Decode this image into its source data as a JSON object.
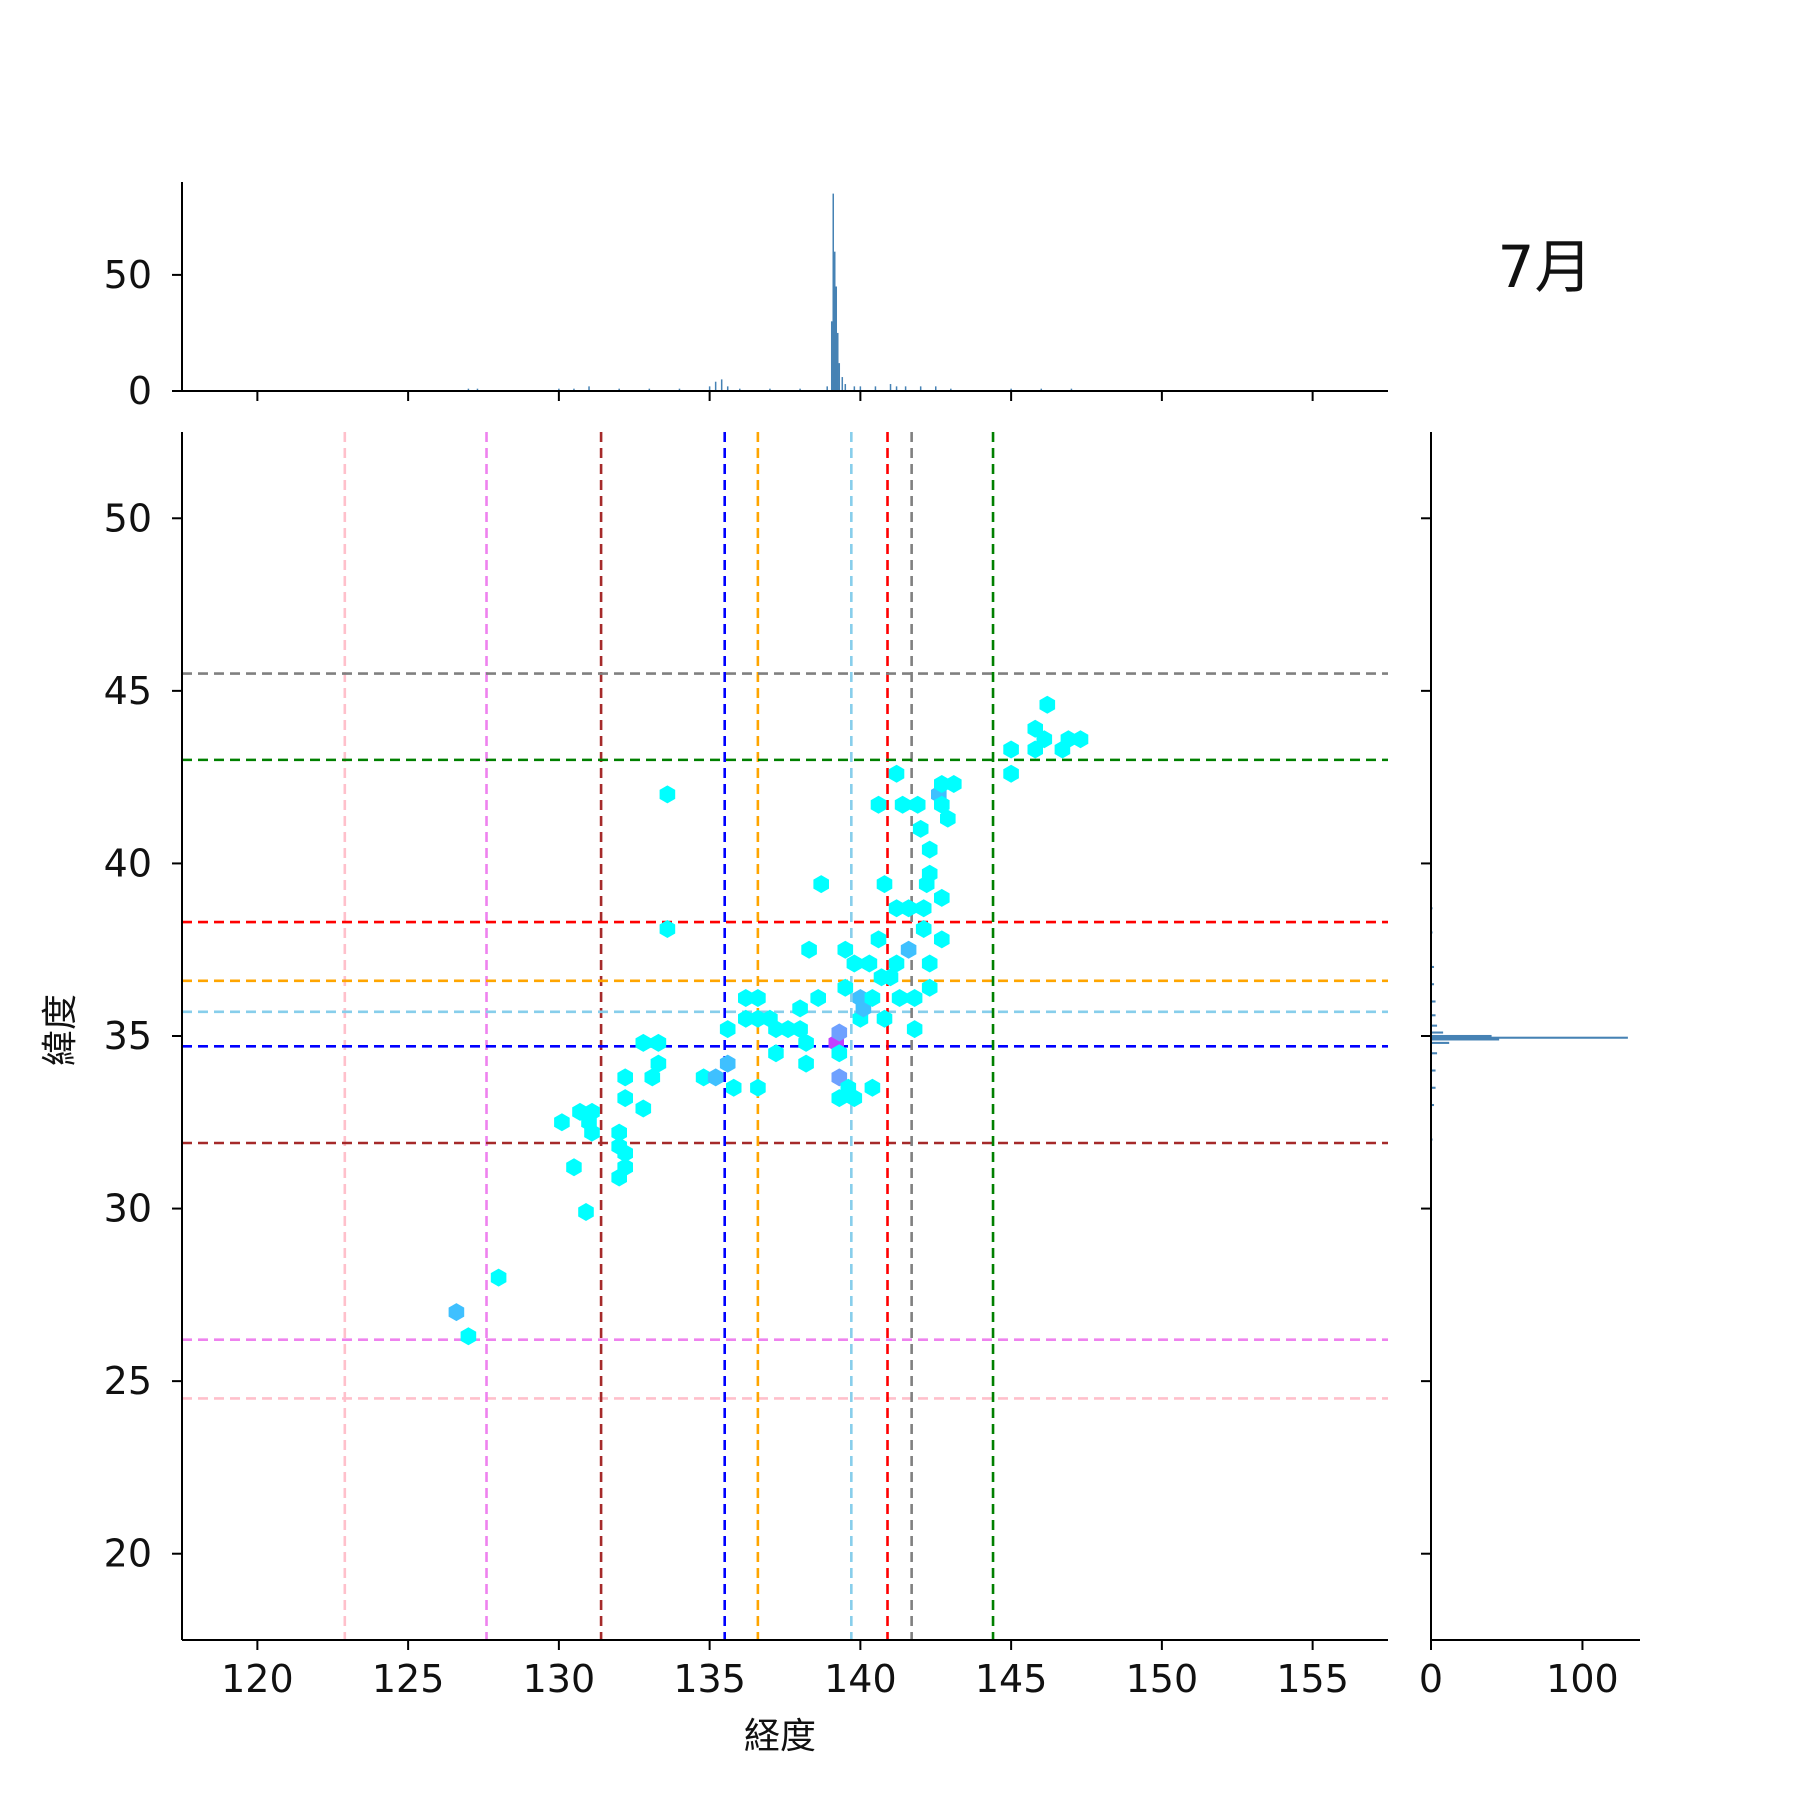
{
  "title": "7月",
  "chart_data": {
    "type": "hexbin",
    "xlabel": "経度",
    "ylabel": "緯度",
    "xlim": [
      117.5,
      157.5
    ],
    "ylim": [
      17.5,
      52.5
    ],
    "x_ticks": [
      120,
      125,
      130,
      135,
      140,
      145,
      150,
      155
    ],
    "y_ticks": [
      20,
      25,
      30,
      35,
      40,
      45,
      50
    ],
    "grid": false,
    "top_marginal": {
      "type": "histogram",
      "ylim": [
        0,
        90
      ],
      "y_ticks": [
        0,
        50
      ],
      "bins": [
        [
          127.0,
          1
        ],
        [
          127.3,
          1
        ],
        [
          130.0,
          1
        ],
        [
          130.5,
          1
        ],
        [
          131.0,
          2
        ],
        [
          132.0,
          1
        ],
        [
          133.0,
          1
        ],
        [
          134.0,
          1
        ],
        [
          135.0,
          2
        ],
        [
          135.2,
          4
        ],
        [
          135.4,
          5
        ],
        [
          135.6,
          2
        ],
        [
          136.0,
          1
        ],
        [
          137.0,
          1
        ],
        [
          138.0,
          1
        ],
        [
          138.9,
          2
        ],
        [
          139.05,
          30
        ],
        [
          139.1,
          85
        ],
        [
          139.15,
          60
        ],
        [
          139.2,
          45
        ],
        [
          139.25,
          25
        ],
        [
          139.3,
          12
        ],
        [
          139.4,
          6
        ],
        [
          139.5,
          3
        ],
        [
          139.8,
          2
        ],
        [
          140.0,
          2
        ],
        [
          140.5,
          2
        ],
        [
          141.0,
          3
        ],
        [
          141.2,
          2
        ],
        [
          141.5,
          2
        ],
        [
          142.0,
          2
        ],
        [
          142.5,
          2
        ],
        [
          143.0,
          1
        ],
        [
          145.0,
          1
        ],
        [
          146.0,
          1
        ],
        [
          147.0,
          1
        ]
      ]
    },
    "right_marginal": {
      "type": "histogram",
      "xlim": [
        0,
        138
      ],
      "x_ticks": [
        0,
        100
      ],
      "bins": [
        [
          32.0,
          1
        ],
        [
          33.0,
          2
        ],
        [
          33.5,
          3
        ],
        [
          34.0,
          3
        ],
        [
          34.5,
          4
        ],
        [
          34.8,
          12
        ],
        [
          34.9,
          45
        ],
        [
          34.95,
          130
        ],
        [
          35.0,
          40
        ],
        [
          35.1,
          8
        ],
        [
          35.3,
          4
        ],
        [
          35.6,
          3
        ],
        [
          36.0,
          3
        ],
        [
          36.5,
          2
        ],
        [
          37.0,
          2
        ],
        [
          38.0,
          1
        ],
        [
          38.7,
          1
        ]
      ]
    },
    "reference_lines": [
      {
        "lon": 122.9,
        "lat": 24.5,
        "color": "#ffc0cb"
      },
      {
        "lon": 127.6,
        "lat": 26.2,
        "color": "#ee82ee"
      },
      {
        "lon": 131.4,
        "lat": 31.9,
        "color": "#a52a2a"
      },
      {
        "lon": 135.5,
        "lat": 34.7,
        "color": "#0000ff"
      },
      {
        "lon": 136.6,
        "lat": 36.6,
        "color": "#ffa500"
      },
      {
        "lon": 139.7,
        "lat": 35.7,
        "color": "#87ceeb"
      },
      {
        "lon": 140.9,
        "lat": 38.3,
        "color": "#ff0000"
      },
      {
        "lon": 141.7,
        "lat": 45.5,
        "color": "#808080"
      },
      {
        "lon": 144.4,
        "lat": 43.0,
        "color": "#008000"
      }
    ],
    "colors": {
      "low": "#00ffff",
      "mid": "#3fc0ff",
      "high": "#6ea0ff",
      "peak": "#c040ff",
      "marginal": "#4682b4"
    },
    "hexbins": [
      [
        126.6,
        27.0,
        3
      ],
      [
        127.0,
        26.3,
        1
      ],
      [
        128.0,
        28.0,
        1
      ],
      [
        130.1,
        32.5,
        1
      ],
      [
        130.5,
        31.2,
        1
      ],
      [
        130.7,
        32.8,
        1
      ],
      [
        130.9,
        29.9,
        1
      ],
      [
        131.0,
        32.5,
        1
      ],
      [
        131.1,
        32.8,
        1
      ],
      [
        131.1,
        32.2,
        1
      ],
      [
        132.0,
        32.2,
        1
      ],
      [
        132.0,
        31.8,
        1
      ],
      [
        132.0,
        30.9,
        1
      ],
      [
        132.2,
        33.8,
        1
      ],
      [
        132.2,
        33.2,
        1
      ],
      [
        132.2,
        31.6,
        1
      ],
      [
        132.2,
        31.2,
        1
      ],
      [
        132.8,
        34.8,
        1
      ],
      [
        132.8,
        32.9,
        1
      ],
      [
        133.1,
        33.8,
        1
      ],
      [
        133.3,
        34.8,
        1
      ],
      [
        133.3,
        34.2,
        1
      ],
      [
        133.6,
        42.0,
        1
      ],
      [
        133.6,
        38.1,
        1
      ],
      [
        134.8,
        33.8,
        1
      ],
      [
        135.2,
        33.8,
        3
      ],
      [
        135.6,
        34.2,
        3
      ],
      [
        135.6,
        35.2,
        1
      ],
      [
        135.8,
        33.5,
        1
      ],
      [
        136.2,
        36.1,
        1
      ],
      [
        136.2,
        35.5,
        1
      ],
      [
        136.6,
        36.1,
        1
      ],
      [
        136.6,
        35.5,
        1
      ],
      [
        136.6,
        33.5,
        1
      ],
      [
        137.0,
        35.5,
        1
      ],
      [
        137.2,
        35.2,
        1
      ],
      [
        137.2,
        34.5,
        1
      ],
      [
        137.6,
        35.2,
        1
      ],
      [
        138.0,
        35.8,
        1
      ],
      [
        138.0,
        35.2,
        1
      ],
      [
        138.2,
        34.2,
        1
      ],
      [
        138.2,
        34.8,
        1
      ],
      [
        138.3,
        37.5,
        1
      ],
      [
        138.6,
        36.1,
        1
      ],
      [
        138.7,
        39.4,
        1
      ],
      [
        139.2,
        34.8,
        7
      ],
      [
        139.3,
        35.1,
        5
      ],
      [
        139.3,
        34.5,
        1
      ],
      [
        139.3,
        33.2,
        1
      ],
      [
        139.3,
        33.8,
        4
      ],
      [
        139.5,
        36.4,
        1
      ],
      [
        139.5,
        37.5,
        1
      ],
      [
        139.6,
        33.5,
        1
      ],
      [
        139.8,
        33.2,
        1
      ],
      [
        139.8,
        37.1,
        1
      ],
      [
        140.0,
        36.1,
        3
      ],
      [
        140.0,
        35.5,
        1
      ],
      [
        140.1,
        35.8,
        3
      ],
      [
        140.3,
        37.1,
        1
      ],
      [
        140.4,
        33.5,
        1
      ],
      [
        140.4,
        36.1,
        1
      ],
      [
        140.6,
        37.8,
        1
      ],
      [
        140.6,
        41.7,
        1
      ],
      [
        140.7,
        36.7,
        1
      ],
      [
        140.8,
        35.5,
        1
      ],
      [
        140.8,
        39.4,
        1
      ],
      [
        141.0,
        36.7,
        1
      ],
      [
        141.2,
        37.1,
        1
      ],
      [
        141.2,
        38.7,
        1
      ],
      [
        141.2,
        42.6,
        1
      ],
      [
        141.3,
        36.1,
        1
      ],
      [
        141.4,
        41.7,
        1
      ],
      [
        141.6,
        38.7,
        1
      ],
      [
        141.6,
        37.5,
        2
      ],
      [
        141.8,
        36.1,
        1
      ],
      [
        141.8,
        35.2,
        1
      ],
      [
        141.9,
        41.7,
        1
      ],
      [
        142.0,
        41.0,
        1
      ],
      [
        142.1,
        38.7,
        1
      ],
      [
        142.1,
        38.1,
        1
      ],
      [
        142.2,
        39.4,
        1
      ],
      [
        142.3,
        37.1,
        1
      ],
      [
        142.3,
        36.4,
        1
      ],
      [
        142.3,
        39.7,
        1
      ],
      [
        142.3,
        40.4,
        1
      ],
      [
        142.6,
        42.0,
        2
      ],
      [
        142.7,
        42.3,
        1
      ],
      [
        142.7,
        39.0,
        1
      ],
      [
        142.7,
        37.8,
        1
      ],
      [
        142.7,
        41.7,
        1
      ],
      [
        142.9,
        41.3,
        1
      ],
      [
        143.1,
        42.3,
        1
      ],
      [
        145.0,
        43.3,
        1
      ],
      [
        145.0,
        42.6,
        1
      ],
      [
        145.8,
        43.9,
        1
      ],
      [
        145.8,
        43.3,
        1
      ],
      [
        146.1,
        43.6,
        1
      ],
      [
        146.2,
        44.6,
        1
      ],
      [
        146.7,
        43.3,
        1
      ],
      [
        146.9,
        43.6,
        1
      ],
      [
        147.3,
        43.6,
        1
      ]
    ]
  }
}
